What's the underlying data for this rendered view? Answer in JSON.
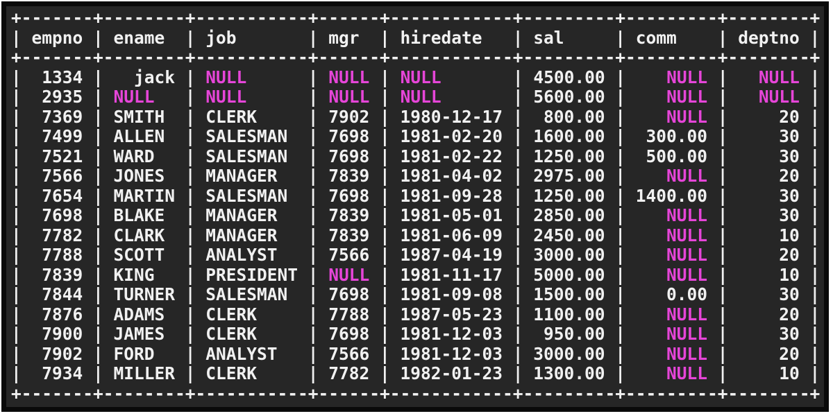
{
  "colors": {
    "page_bg": "#ffffff",
    "frame": "#0a0a0a",
    "terminal_bg": "#262626",
    "text": "#f1f1f1",
    "null_text": "#e645d8"
  },
  "null_token": "NULL",
  "table": {
    "columns": [
      {
        "name": "empno",
        "width": 5,
        "align": "right"
      },
      {
        "name": "ename",
        "width": 6,
        "align": "left"
      },
      {
        "name": "job",
        "width": 9,
        "align": "left"
      },
      {
        "name": "mgr",
        "width": 4,
        "align": "right"
      },
      {
        "name": "hiredate",
        "width": 10,
        "align": "left"
      },
      {
        "name": "sal",
        "width": 7,
        "align": "right"
      },
      {
        "name": "comm",
        "width": 7,
        "align": "right"
      },
      {
        "name": "deptno",
        "width": 6,
        "align": "right"
      }
    ],
    "rows": [
      [
        "1334",
        "  jack",
        null,
        null,
        null,
        "4500.00",
        null,
        null
      ],
      [
        "2935",
        null,
        null,
        null,
        null,
        "5600.00",
        null,
        null
      ],
      [
        "7369",
        "SMITH",
        "CLERK",
        "7902",
        "1980-12-17",
        "800.00",
        null,
        "20"
      ],
      [
        "7499",
        "ALLEN",
        "SALESMAN",
        "7698",
        "1981-02-20",
        "1600.00",
        "300.00",
        "30"
      ],
      [
        "7521",
        "WARD",
        "SALESMAN",
        "7698",
        "1981-02-22",
        "1250.00",
        "500.00",
        "30"
      ],
      [
        "7566",
        "JONES",
        "MANAGER",
        "7839",
        "1981-04-02",
        "2975.00",
        null,
        "20"
      ],
      [
        "7654",
        "MARTIN",
        "SALESMAN",
        "7698",
        "1981-09-28",
        "1250.00",
        "1400.00",
        "30"
      ],
      [
        "7698",
        "BLAKE",
        "MANAGER",
        "7839",
        "1981-05-01",
        "2850.00",
        null,
        "30"
      ],
      [
        "7782",
        "CLARK",
        "MANAGER",
        "7839",
        "1981-06-09",
        "2450.00",
        null,
        "10"
      ],
      [
        "7788",
        "SCOTT",
        "ANALYST",
        "7566",
        "1987-04-19",
        "3000.00",
        null,
        "20"
      ],
      [
        "7839",
        "KING",
        "PRESIDENT",
        null,
        "1981-11-17",
        "5000.00",
        null,
        "10"
      ],
      [
        "7844",
        "TURNER",
        "SALESMAN",
        "7698",
        "1981-09-08",
        "1500.00",
        "0.00",
        "30"
      ],
      [
        "7876",
        "ADAMS",
        "CLERK",
        "7788",
        "1987-05-23",
        "1100.00",
        null,
        "20"
      ],
      [
        "7900",
        "JAMES",
        "CLERK",
        "7698",
        "1981-12-03",
        "950.00",
        null,
        "30"
      ],
      [
        "7902",
        "FORD",
        "ANALYST",
        "7566",
        "1981-12-03",
        "3000.00",
        null,
        "20"
      ],
      [
        "7934",
        "MILLER",
        "CLERK",
        "7782",
        "1982-01-23",
        "1300.00",
        null,
        "10"
      ]
    ]
  }
}
